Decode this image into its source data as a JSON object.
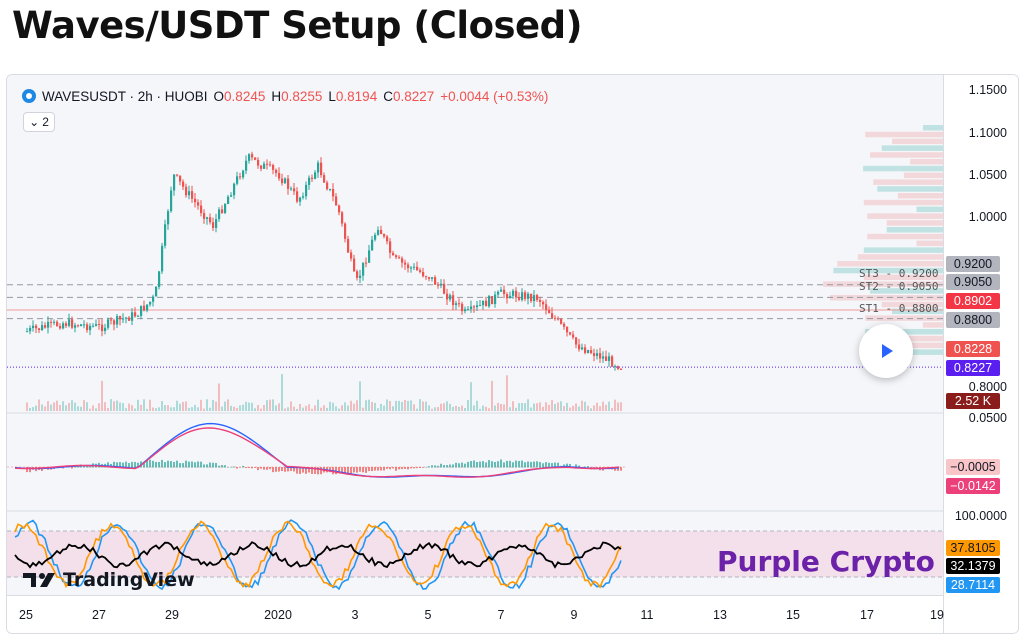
{
  "title": "Waves/USDT Setup (Closed)",
  "legend": {
    "symbol": "WAVESUSDT · 2h · HUOBI",
    "open_label": "O",
    "open": "0.8245",
    "high_label": "H",
    "high": "0.8255",
    "low_label": "L",
    "low": "0.8194",
    "close_label": "C",
    "close": "0.8227",
    "change": "+0.0044 (+0.53%)"
  },
  "indicator_toggle": {
    "count": "2"
  },
  "price_axis": {
    "ticks": [
      "1.1500",
      "1.1000",
      "1.0500",
      "1.0000",
      "0.8000",
      "0.0500",
      "100.0000"
    ],
    "tags": {
      "st3": "0.9200",
      "st2": "0.9050",
      "high_line": "0.8902",
      "st1": "0.8800",
      "last_a": "0.8228",
      "last_b": "0.8227",
      "volume": "2.52 K",
      "macd_a": "−0.0005",
      "macd_b": "−0.0142",
      "stoch_a": "37.8105",
      "stoch_b": "32.1379",
      "stoch_c": "28.7114"
    }
  },
  "st_lines": {
    "st3": "ST3 - 0.9200",
    "st2": "ST2 - 0.9050",
    "st1": "ST1 - 0.8800"
  },
  "time_axis": [
    "25",
    "27",
    "29",
    "2020",
    "3",
    "5",
    "7",
    "9",
    "11",
    "13",
    "15",
    "17",
    "19"
  ],
  "watermark": "Purple Crypto",
  "branding": "TradingView",
  "colors": {
    "up": "#26a69a",
    "down": "#ef5350",
    "watermark": "#6b21a8",
    "macd": "#2962ff",
    "signal": "#ff6d00"
  },
  "chart_data": {
    "type": "candlestick",
    "pair": "WAVESUSDT",
    "interval": "2h",
    "exchange": "HUOBI",
    "close_path": [
      {
        "x": "25",
        "y": 0.865
      },
      {
        "x": "26",
        "y": 0.875
      },
      {
        "x": "27",
        "y": 0.87
      },
      {
        "x": "28",
        "y": 0.885
      },
      {
        "x": "28.5",
        "y": 0.905
      },
      {
        "x": "29",
        "y": 1.05
      },
      {
        "x": "30",
        "y": 0.99
      },
      {
        "x": "31",
        "y": 1.07
      },
      {
        "x": "2020",
        "y": 1.05
      },
      {
        "x": "1.5",
        "y": 1.02
      },
      {
        "x": "2",
        "y": 1.06
      },
      {
        "x": "2.5",
        "y": 1.01
      },
      {
        "x": "3",
        "y": 0.92
      },
      {
        "x": "3.5",
        "y": 0.99
      },
      {
        "x": "4",
        "y": 0.95
      },
      {
        "x": "5",
        "y": 0.93
      },
      {
        "x": "6",
        "y": 0.885
      },
      {
        "x": "7",
        "y": 0.91
      },
      {
        "x": "8",
        "y": 0.905
      },
      {
        "x": "9",
        "y": 0.85
      },
      {
        "x": "10",
        "y": 0.8227
      }
    ],
    "ylim": [
      0.8,
      1.15
    ]
  }
}
